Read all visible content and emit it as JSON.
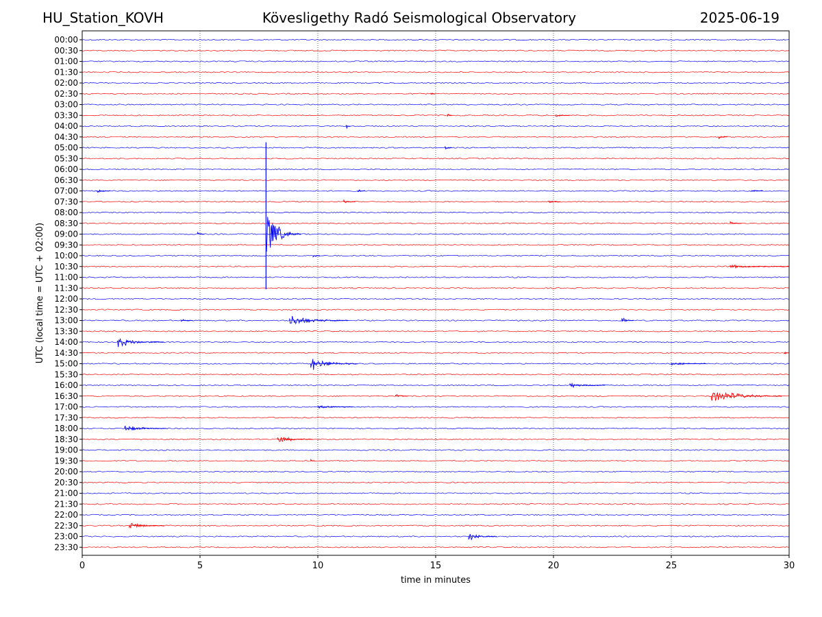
{
  "header": {
    "station": "HU_Station_KOVH",
    "title": "Kövesligethy Radó Seismological Observatory",
    "date": "2025-06-19"
  },
  "chart_data": {
    "type": "line",
    "title": "Kövesligethy Radó Seismological Observatory",
    "xlabel": "time in minutes",
    "ylabel": "UTC (local time = UTC + 02:00)",
    "xlim": [
      0,
      30
    ],
    "xticks": [
      0,
      5,
      10,
      15,
      20,
      25,
      30
    ],
    "grid": "vertical dotted lines at x ticks",
    "colors": {
      "even_rows": "#0000ff",
      "odd_rows": "#ff0000"
    },
    "rows": [
      "00:00",
      "00:30",
      "01:00",
      "01:30",
      "02:00",
      "02:30",
      "03:00",
      "03:30",
      "04:00",
      "04:30",
      "05:00",
      "05:30",
      "06:00",
      "06:30",
      "07:00",
      "07:30",
      "08:00",
      "08:30",
      "09:00",
      "09:30",
      "10:00",
      "10:30",
      "11:00",
      "11:30",
      "12:00",
      "12:30",
      "13:00",
      "13:30",
      "14:00",
      "14:30",
      "15:00",
      "15:30",
      "16:00",
      "16:30",
      "17:00",
      "17:30",
      "18:00",
      "18:30",
      "19:00",
      "19:30",
      "20:00",
      "20:30",
      "21:00",
      "21:30",
      "22:00",
      "22:30",
      "23:00",
      "23:30"
    ],
    "events": [
      {
        "row": "02:30",
        "minute": 14.8,
        "amplitude": 0.3,
        "duration": 0.15
      },
      {
        "row": "03:30",
        "minute": 15.5,
        "amplitude": 0.25,
        "duration": 0.2
      },
      {
        "row": "03:30",
        "minute": 20.1,
        "amplitude": 0.2,
        "duration": 0.6
      },
      {
        "row": "04:00",
        "minute": 11.2,
        "amplitude": 0.45,
        "duration": 0.2
      },
      {
        "row": "04:30",
        "minute": 27.0,
        "amplitude": 0.3,
        "duration": 0.4
      },
      {
        "row": "05:00",
        "minute": 15.4,
        "amplitude": 0.25,
        "duration": 0.3
      },
      {
        "row": "07:00",
        "minute": 0.6,
        "amplitude": 0.3,
        "duration": 0.6
      },
      {
        "row": "07:00",
        "minute": 11.7,
        "amplitude": 0.25,
        "duration": 0.3
      },
      {
        "row": "07:00",
        "minute": 28.4,
        "amplitude": 0.3,
        "duration": 0.5
      },
      {
        "row": "07:30",
        "minute": 11.1,
        "amplitude": 0.25,
        "duration": 0.5
      },
      {
        "row": "07:30",
        "minute": 19.8,
        "amplitude": 0.25,
        "duration": 0.5
      },
      {
        "row": "08:30",
        "minute": 27.5,
        "amplitude": 0.2,
        "duration": 0.5
      },
      {
        "row": "09:00",
        "minute": 4.9,
        "amplitude": 0.25,
        "duration": 0.3
      },
      {
        "row": "10:00",
        "minute": 9.8,
        "amplitude": 0.25,
        "duration": 0.3
      },
      {
        "row": "10:30",
        "minute": 27.5,
        "amplitude": 0.2,
        "duration": 2.5
      },
      {
        "row": "13:00",
        "minute": 8.8,
        "amplitude": 0.6,
        "duration": 2.5
      },
      {
        "row": "13:00",
        "minute": 4.2,
        "amplitude": 0.25,
        "duration": 0.5
      },
      {
        "row": "13:00",
        "minute": 22.9,
        "amplitude": 0.4,
        "duration": 0.5
      },
      {
        "row": "14:00",
        "minute": 1.5,
        "amplitude": 0.55,
        "duration": 2.0
      },
      {
        "row": "14:30",
        "minute": 29.8,
        "amplitude": 0.25,
        "duration": 0.2
      },
      {
        "row": "15:00",
        "minute": 9.7,
        "amplitude": 0.8,
        "duration": 2.0
      },
      {
        "row": "15:00",
        "minute": 25.0,
        "amplitude": 0.2,
        "duration": 1.5
      },
      {
        "row": "16:00",
        "minute": 20.7,
        "amplitude": 0.3,
        "duration": 1.5
      },
      {
        "row": "16:30",
        "minute": 13.3,
        "amplitude": 0.3,
        "duration": 0.5
      },
      {
        "row": "16:30",
        "minute": 26.7,
        "amplitude": 0.75,
        "duration": 3.0
      },
      {
        "row": "17:00",
        "minute": 10.0,
        "amplitude": 0.2,
        "duration": 1.5
      },
      {
        "row": "18:00",
        "minute": 1.8,
        "amplitude": 0.4,
        "duration": 1.8
      },
      {
        "row": "18:30",
        "minute": 8.3,
        "amplitude": 0.45,
        "duration": 1.5
      },
      {
        "row": "19:30",
        "minute": 9.7,
        "amplitude": 0.2,
        "duration": 0.2
      },
      {
        "row": "22:30",
        "minute": 2.0,
        "amplitude": 0.4,
        "duration": 1.5
      },
      {
        "row": "23:00",
        "minute": 16.4,
        "amplitude": 0.45,
        "duration": 1.2
      }
    ],
    "major_event": {
      "row": "09:00",
      "minute": 7.8,
      "extent_rows_above": 8.5,
      "extent_rows_below": 5.1,
      "coda_minutes": 1.5
    }
  }
}
